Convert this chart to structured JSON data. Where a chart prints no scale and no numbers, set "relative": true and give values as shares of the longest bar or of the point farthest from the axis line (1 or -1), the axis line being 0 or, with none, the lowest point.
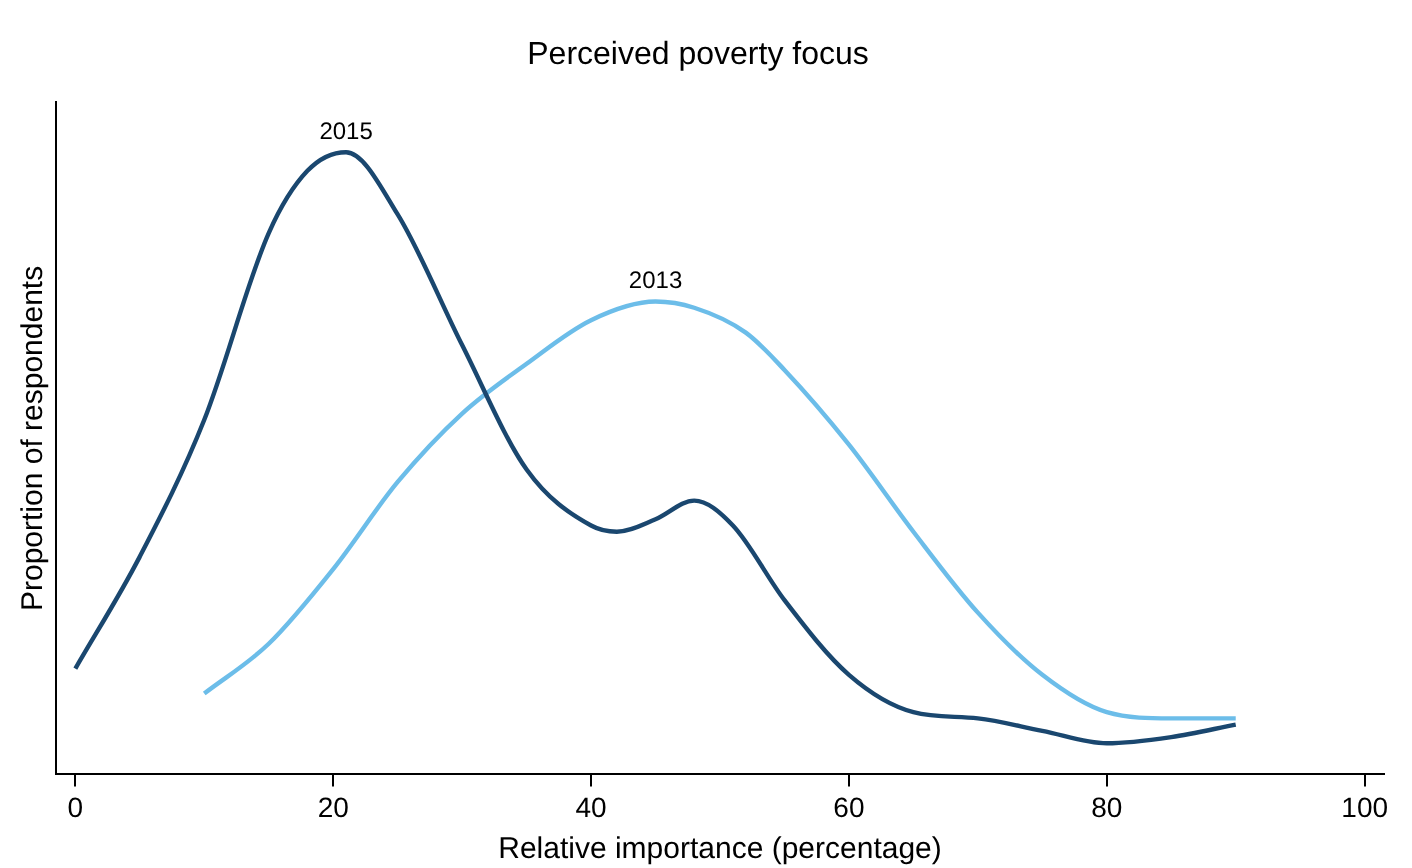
{
  "chart_data": {
    "type": "line",
    "title": "Perceived poverty focus",
    "xlabel": "Relative importance (percentage)",
    "ylabel": "Proportion of respondents",
    "relative": true,
    "legend": false,
    "grid": false,
    "marker": "none",
    "xlim": [
      -1.5,
      101.5
    ],
    "xticks": [
      0,
      20,
      40,
      60,
      80,
      100
    ],
    "series": [
      {
        "name": "2015",
        "color": "#1a476f",
        "x": [
          0,
          5,
          10,
          15,
          18,
          21,
          25,
          30,
          35,
          40,
          42,
          45,
          48,
          51,
          55,
          60,
          65,
          70,
          75,
          80,
          85,
          90
        ],
        "values": [
          0.17,
          0.35,
          0.57,
          0.87,
          0.97,
          1,
          0.9,
          0.69,
          0.49,
          0.4,
          0.39,
          0.41,
          0.44,
          0.4,
          0.28,
          0.16,
          0.1,
          0.09,
          0.07,
          0.05,
          0.06,
          0.08
        ]
      },
      {
        "name": "2013",
        "color": "#6cbde9",
        "x": [
          10,
          15,
          20,
          25,
          30,
          35,
          40,
          45,
          48,
          52,
          55,
          60,
          65,
          70,
          75,
          80,
          85,
          90
        ],
        "values": [
          0.13,
          0.21,
          0.33,
          0.47,
          0.58,
          0.66,
          0.73,
          0.76,
          0.75,
          0.71,
          0.65,
          0.53,
          0.39,
          0.26,
          0.16,
          0.1,
          0.09,
          0.09
        ]
      }
    ]
  }
}
